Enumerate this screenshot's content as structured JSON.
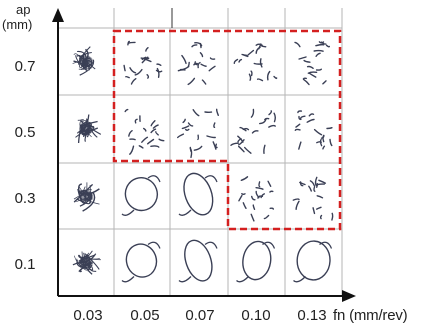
{
  "y_axis": {
    "name": "ap",
    "unit": "(mm)",
    "values": [
      "0.7",
      "0.5",
      "0.3",
      "0.1"
    ]
  },
  "x_axis": {
    "values": [
      "0.03",
      "0.05",
      "0.07",
      "0.10",
      "0.13"
    ],
    "label": "fn (mm/rev)"
  },
  "grid": {
    "rows": [
      "0.7",
      "0.5",
      "0.3",
      "0.1"
    ],
    "cols": [
      "0.03",
      "0.05",
      "0.07",
      "0.10",
      "0.13"
    ],
    "chip_types": [
      [
        "tangled-ball",
        "fragmented",
        "fragmented",
        "fragmented",
        "fragmented"
      ],
      [
        "tangled-ball",
        "fragmented",
        "fragmented",
        "fragmented",
        "fragmented"
      ],
      [
        "tangled-ball",
        "long-curl",
        "long-curl",
        "fragmented",
        "fragmented"
      ],
      [
        "tangled-ball",
        "long-curl",
        "long-curl",
        "long-curl",
        "long-curl"
      ]
    ]
  },
  "highlight": {
    "color": "#d42020",
    "style": "dashed"
  },
  "colors": {
    "chip": "#3a3f55",
    "grid": "#b5b5b5",
    "axis": "#111111"
  }
}
